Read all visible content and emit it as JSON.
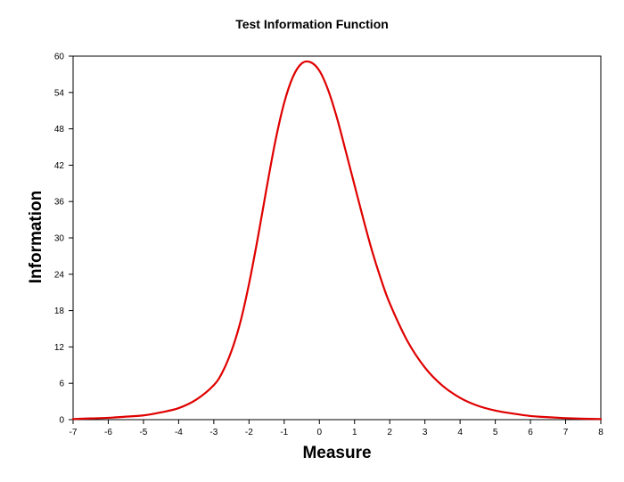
{
  "chart_data": {
    "type": "line",
    "title": "Test Information Function",
    "xlabel": "Measure",
    "ylabel": "Information",
    "xlim": [
      -7,
      8
    ],
    "ylim": [
      0,
      60
    ],
    "xticks": [
      -7,
      -6,
      -5,
      -4,
      -3,
      -2,
      -1,
      0,
      1,
      2,
      3,
      4,
      5,
      6,
      7,
      8
    ],
    "yticks": [
      0,
      6,
      12,
      18,
      24,
      30,
      36,
      42,
      48,
      54,
      60
    ],
    "grid": false,
    "legend": "none",
    "series": [
      {
        "color": "#e00000",
        "x": [
          -7,
          -6.5,
          -6,
          -5.5,
          -5,
          -4.5,
          -4,
          -3.5,
          -3,
          -2.75,
          -2.5,
          -2.25,
          -2,
          -1.75,
          -1.5,
          -1.25,
          -1,
          -0.75,
          -0.5,
          -0.25,
          0,
          0.25,
          0.5,
          0.75,
          1,
          1.25,
          1.5,
          1.75,
          2,
          2.5,
          3,
          3.5,
          4,
          4.5,
          5,
          5.5,
          6,
          6.5,
          7,
          7.5,
          8
        ],
        "y": [
          0.1,
          0.2,
          0.3,
          0.5,
          0.7,
          1.2,
          1.9,
          3.3,
          5.7,
          7.9,
          11.3,
          16.0,
          22.4,
          30.0,
          38.2,
          46.0,
          52.3,
          56.6,
          58.8,
          59.0,
          57.6,
          54.4,
          49.8,
          44.3,
          38.7,
          33.1,
          27.8,
          23.2,
          19.2,
          13.0,
          8.6,
          5.6,
          3.6,
          2.3,
          1.5,
          1.0,
          0.6,
          0.4,
          0.25,
          0.15,
          0.1
        ]
      }
    ]
  }
}
